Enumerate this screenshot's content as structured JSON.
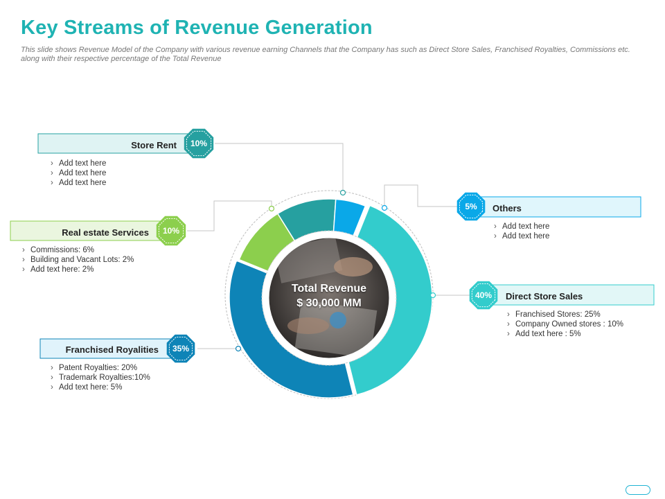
{
  "slide": {
    "title": "Key Streams of Revenue Generation",
    "subtitle": "This slide shows Revenue Model of the Company with various revenue earning Channels that the Company has such as Direct Store Sales, Franchised Royalties, Commissions etc. along with their respective percentage of the Total Revenue"
  },
  "center": {
    "line1": "Total Revenue",
    "line2": "$ 30,000 MM"
  },
  "streams": {
    "store_rent": {
      "label": "Store Rent",
      "badge": "10%",
      "items": [
        "Add text here",
        "Add text here",
        "Add text here"
      ],
      "color": "#26a0a0"
    },
    "real_estate": {
      "label": "Real estate Services",
      "badge": "10%",
      "items": [
        "Commissions: 6%",
        "Building and Vacant Lots: 2%",
        "Add text here: 2%"
      ],
      "color": "#8ccf4d"
    },
    "franchised": {
      "label": "Franchised Royalities",
      "badge": "35%",
      "items": [
        "Patent Royalties: 20%",
        "Trademark Royalties:10%",
        "Add text here: 5%"
      ],
      "color": "#0e84b7"
    },
    "others": {
      "label": "Others",
      "badge": "5%",
      "items": [
        "Add text here",
        "Add text here"
      ],
      "color": "#0aa8e8"
    },
    "direct_store": {
      "label": "Direct Store Sales",
      "badge": "40%",
      "items": [
        "Franchised Stores: 25%",
        "Company Owned stores : 10%",
        "Add text here : 5%"
      ],
      "color": "#33cccc"
    }
  },
  "chart_data": {
    "type": "pie",
    "title": "",
    "center_label": "Total Revenue $ 30,000 MM",
    "categories": [
      "Store Rent",
      "Others",
      "Direct Store Sales",
      "Franchised Royalities",
      "Real estate Services"
    ],
    "values": [
      10,
      5,
      40,
      35,
      10
    ],
    "colors": [
      "#26a0a0",
      "#0aa8e8",
      "#33cccc",
      "#0e84b7",
      "#8ccf4d"
    ]
  }
}
